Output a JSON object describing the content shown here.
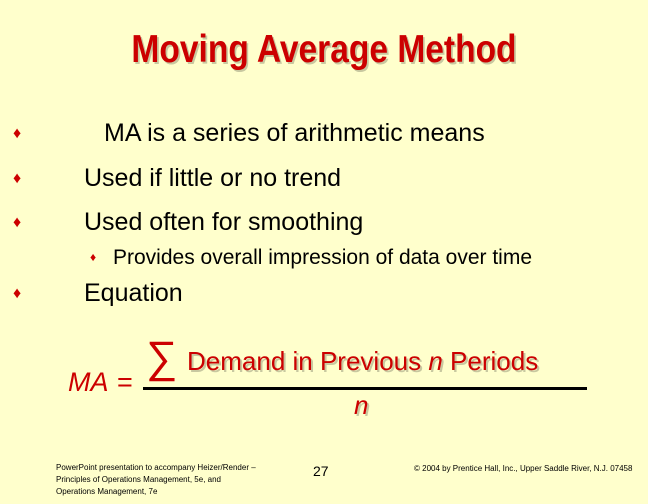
{
  "slide": {
    "title": "Moving Average Method",
    "bullets": [
      "MA is a series of arithmetic means",
      "Used if little or no trend",
      "Used often for smoothing",
      "Equation"
    ],
    "sub_bullet": "Provides overall impression of data over time",
    "bullet_glyph": "♦",
    "accent_color": "#CC0000",
    "background_color": "#FFFFCC"
  },
  "equation": {
    "lhs": "MA",
    "equals": "=",
    "sigma": "∑",
    "numerator_prefix": "Demand in Previous ",
    "numerator_var": "n",
    "numerator_suffix": " Periods",
    "denominator": "n"
  },
  "footer": {
    "left": "PowerPoint presentation to accompany Heizer/Render – Principles of Operations Management, 5e, and Operations Management, 7e",
    "page_number": "27",
    "right": "© 2004 by Prentice Hall, Inc., Upper Saddle River, N.J. 07458"
  }
}
